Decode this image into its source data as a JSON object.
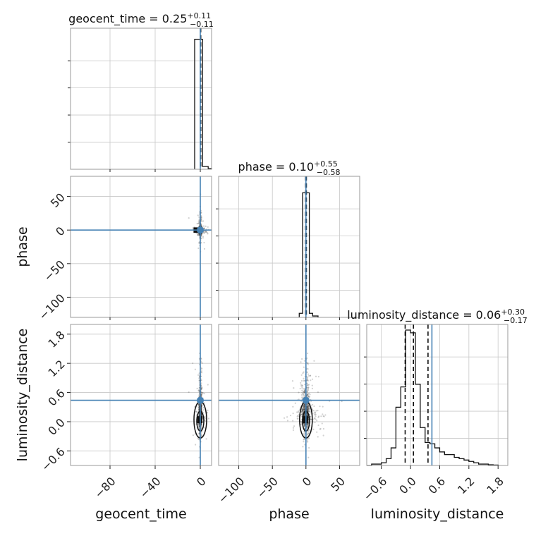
{
  "chart_data": {
    "type": "corner",
    "parameters": [
      "geocent_time",
      "phase",
      "luminosity_distance"
    ],
    "truth": {
      "geocent_time": 0.0,
      "phase": 0.0,
      "luminosity_distance": 0.44
    },
    "truth_color": "#4682b4",
    "titles": [
      {
        "name": "geocent_time",
        "median": "0.25",
        "plus": "+0.11",
        "minus": "−0.11"
      },
      {
        "name": "phase",
        "median": "0.10",
        "plus": "+0.55",
        "minus": "−0.58"
      },
      {
        "name": "luminosity_distance",
        "median": "0.06",
        "plus": "+0.30",
        "minus": "−0.17"
      }
    ],
    "axis_labels": {
      "x": [
        "geocent_time",
        "phase",
        "luminosity_distance"
      ],
      "y": [
        "phase",
        "luminosity_distance"
      ]
    },
    "ranges": {
      "geocent_time": [
        -115,
        10
      ],
      "phase": [
        -130,
        80
      ],
      "luminosity_distance": [
        -0.9,
        2.0
      ]
    },
    "ticks": {
      "geocent_time": {
        "values": [
          -80,
          -40,
          0
        ],
        "labels": [
          "−80",
          "−40",
          "0"
        ]
      },
      "phase": {
        "values": [
          -100,
          -50,
          0,
          50
        ],
        "labels": [
          "−100",
          "−50",
          "0",
          "50"
        ]
      },
      "luminosity_distance": {
        "values": [
          -0.6,
          0.0,
          0.6,
          1.2,
          1.8
        ],
        "labels": [
          "−0.6",
          "0.0",
          "0.6",
          "1.2",
          "1.8"
        ]
      }
    },
    "histograms": {
      "geocent_time": {
        "bins": [
          [
            -5,
            -1,
            0.96
          ],
          [
            -1,
            2,
            0.96
          ],
          [
            2,
            7,
            0.02
          ],
          [
            7,
            10,
            0.005
          ]
        ],
        "quantile_lines": [
          0.14,
          0.25,
          0.36
        ]
      },
      "phase": {
        "bins": [
          [
            -10,
            -5,
            0.03
          ],
          [
            -5,
            5,
            0.92
          ],
          [
            5,
            10,
            0.03
          ],
          [
            10,
            18,
            0.01
          ]
        ],
        "quantile_lines": [
          -0.48,
          0.1,
          0.65
        ]
      },
      "luminosity_distance": {
        "bins": [
          [
            -0.9,
            -0.8,
            0.0
          ],
          [
            -0.8,
            -0.7,
            0.01
          ],
          [
            -0.7,
            -0.6,
            0.01
          ],
          [
            -0.6,
            -0.5,
            0.02
          ],
          [
            -0.5,
            -0.4,
            0.05
          ],
          [
            -0.4,
            -0.3,
            0.13
          ],
          [
            -0.3,
            -0.2,
            0.43
          ],
          [
            -0.2,
            -0.1,
            0.58
          ],
          [
            -0.1,
            0.0,
            1.0
          ],
          [
            0.0,
            0.1,
            0.98
          ],
          [
            0.1,
            0.2,
            0.6
          ],
          [
            0.2,
            0.3,
            0.28
          ],
          [
            0.3,
            0.4,
            0.17
          ],
          [
            0.4,
            0.5,
            0.16
          ],
          [
            0.5,
            0.6,
            0.13
          ],
          [
            0.6,
            0.7,
            0.1
          ],
          [
            0.7,
            0.8,
            0.08
          ],
          [
            0.8,
            0.9,
            0.08
          ],
          [
            0.9,
            1.0,
            0.06
          ],
          [
            1.0,
            1.1,
            0.05
          ],
          [
            1.1,
            1.2,
            0.04
          ],
          [
            1.2,
            1.3,
            0.03
          ],
          [
            1.3,
            1.4,
            0.02
          ],
          [
            1.4,
            1.5,
            0.01
          ],
          [
            1.5,
            1.6,
            0.01
          ],
          [
            1.6,
            1.7,
            0.005
          ],
          [
            1.7,
            1.8,
            0.003
          ]
        ],
        "quantile_lines": [
          -0.11,
          0.06,
          0.36
        ]
      }
    },
    "grid": true
  }
}
